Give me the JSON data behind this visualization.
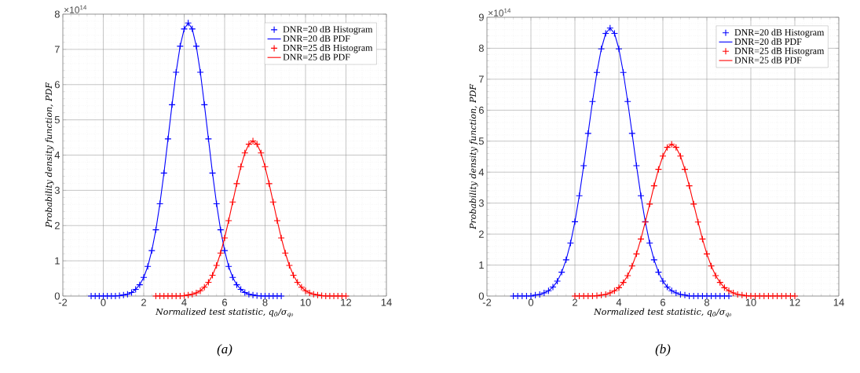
{
  "chart_data": [
    {
      "type": "line",
      "xlabel": "Normalized test statistic, q$_{0}$/σ$_{q₀}$",
      "ylabel": "Probability density function, PDF",
      "xlim": [
        -2,
        14
      ],
      "xticks": [
        -2,
        0,
        2,
        4,
        6,
        8,
        10,
        12,
        14
      ],
      "ylim": [
        0,
        8
      ],
      "yticks": [
        0,
        1,
        2,
        3,
        4,
        5,
        6,
        7,
        8
      ],
      "grid": true,
      "legend": "top right",
      "annotations": [
        "×10$^{14}$",
        "(a)"
      ],
      "series": [
        {
          "name": "DNR=20 dB Histogram",
          "type": "scatter",
          "marker": "cross",
          "color": "#0000ff",
          "x": [
            -0.6,
            -0.4,
            -0.2,
            0,
            0.2,
            0.4,
            0.6,
            0.8,
            1,
            1.2,
            1.4,
            1.6,
            1.8,
            2,
            2.2,
            2.4,
            2.6,
            2.8,
            3,
            3.2,
            3.4,
            3.6,
            3.8,
            4,
            4.2,
            4.4,
            4.6,
            4.8,
            5,
            5.2,
            5.4,
            5.6,
            5.8,
            6,
            6.2,
            6.4,
            6.6,
            6.8,
            7,
            7.2,
            7.4,
            7.6,
            7.8,
            8,
            8.2,
            8.4,
            8.6,
            8.8
          ],
          "values": [
            0,
            0,
            0,
            0,
            0,
            0,
            0,
            0.01,
            0.03,
            0.05,
            0.1,
            0.19,
            0.32,
            0.53,
            0.84,
            1.29,
            1.88,
            2.62,
            3.49,
            4.46,
            5.43,
            6.35,
            7.09,
            7.58,
            7.75,
            7.58,
            7.09,
            6.35,
            5.43,
            4.46,
            3.49,
            2.62,
            1.88,
            1.29,
            0.84,
            0.53,
            0.32,
            0.19,
            0.1,
            0.05,
            0.03,
            0.01,
            0,
            0,
            0,
            0,
            0,
            0
          ]
        },
        {
          "name": "DNR=20 dB PDF",
          "type": "line",
          "color": "#0000ff",
          "x": [
            -0.6,
            -0.4,
            -0.2,
            0,
            0.2,
            0.4,
            0.6,
            0.8,
            1,
            1.2,
            1.4,
            1.6,
            1.8,
            2,
            2.2,
            2.4,
            2.6,
            2.8,
            3,
            3.2,
            3.4,
            3.6,
            3.8,
            4,
            4.2,
            4.4,
            4.6,
            4.8,
            5,
            5.2,
            5.4,
            5.6,
            5.8,
            6,
            6.2,
            6.4,
            6.6,
            6.8,
            7,
            7.2,
            7.4,
            7.6,
            7.8,
            8,
            8.2,
            8.4,
            8.6,
            8.8
          ],
          "values": [
            0,
            0,
            0,
            0,
            0,
            0,
            0,
            0.01,
            0.03,
            0.05,
            0.1,
            0.19,
            0.32,
            0.53,
            0.84,
            1.29,
            1.88,
            2.62,
            3.49,
            4.46,
            5.43,
            6.35,
            7.09,
            7.58,
            7.75,
            7.58,
            7.09,
            6.35,
            5.43,
            4.46,
            3.49,
            2.62,
            1.88,
            1.29,
            0.84,
            0.53,
            0.32,
            0.19,
            0.1,
            0.05,
            0.03,
            0.01,
            0,
            0,
            0,
            0,
            0,
            0
          ]
        },
        {
          "name": "DNR=25 dB Histogram",
          "type": "scatter",
          "marker": "cross",
          "color": "#ff0000",
          "x": [
            2.6,
            2.8,
            3,
            3.2,
            3.4,
            3.6,
            3.8,
            4,
            4.2,
            4.4,
            4.6,
            4.8,
            5,
            5.2,
            5.4,
            5.6,
            5.8,
            6,
            6.2,
            6.4,
            6.6,
            6.8,
            7,
            7.2,
            7.4,
            7.6,
            7.8,
            8,
            8.2,
            8.4,
            8.6,
            8.8,
            9,
            9.2,
            9.4,
            9.6,
            9.8,
            10,
            10.2,
            10.4,
            10.6,
            10.8,
            11,
            11.2,
            11.4,
            11.6,
            11.8,
            12
          ],
          "values": [
            0,
            0,
            0,
            0,
            0,
            0,
            0,
            0.01,
            0.03,
            0.05,
            0.09,
            0.15,
            0.25,
            0.39,
            0.59,
            0.87,
            1.22,
            1.65,
            2.14,
            2.67,
            3.19,
            3.67,
            4.06,
            4.31,
            4.4,
            4.31,
            4.06,
            3.67,
            3.19,
            2.67,
            2.14,
            1.65,
            1.22,
            0.87,
            0.59,
            0.39,
            0.25,
            0.15,
            0.09,
            0.05,
            0.03,
            0.01,
            0,
            0,
            0,
            0,
            0,
            0
          ]
        },
        {
          "name": "DNR=25 dB PDF",
          "type": "line",
          "color": "#ff0000",
          "x": [
            2.6,
            2.8,
            3,
            3.2,
            3.4,
            3.6,
            3.8,
            4,
            4.2,
            4.4,
            4.6,
            4.8,
            5,
            5.2,
            5.4,
            5.6,
            5.8,
            6,
            6.2,
            6.4,
            6.6,
            6.8,
            7,
            7.2,
            7.4,
            7.6,
            7.8,
            8,
            8.2,
            8.4,
            8.6,
            8.8,
            9,
            9.2,
            9.4,
            9.6,
            9.8,
            10,
            10.2,
            10.4,
            10.6,
            10.8,
            11,
            11.2,
            11.4,
            11.6,
            11.8,
            12
          ],
          "values": [
            0,
            0,
            0,
            0,
            0,
            0,
            0,
            0.01,
            0.03,
            0.05,
            0.09,
            0.15,
            0.25,
            0.39,
            0.59,
            0.87,
            1.22,
            1.65,
            2.14,
            2.67,
            3.19,
            3.67,
            4.06,
            4.31,
            4.4,
            4.31,
            4.06,
            3.67,
            3.19,
            2.67,
            2.14,
            1.65,
            1.22,
            0.87,
            0.59,
            0.39,
            0.25,
            0.15,
            0.09,
            0.05,
            0.03,
            0.01,
            0,
            0,
            0,
            0,
            0,
            0
          ]
        }
      ]
    },
    {
      "type": "line",
      "xlabel": "Normalized test statistic, q$_{0}$/σ$_{q₀}$",
      "ylabel": "Probability density function, PDF",
      "xlim": [
        -2,
        14
      ],
      "xticks": [
        -2,
        0,
        2,
        4,
        6,
        8,
        10,
        12,
        14
      ],
      "ylim": [
        0,
        9
      ],
      "yticks": [
        0,
        1,
        2,
        3,
        4,
        5,
        6,
        7,
        8,
        9
      ],
      "grid": true,
      "legend": "top right",
      "annotations": [
        "×10$^{14}$",
        "(b)"
      ],
      "series": [
        {
          "name": "DNR=20 dB Histogram",
          "type": "scatter",
          "marker": "cross",
          "color": "#0000ff",
          "x": [
            -0.8,
            -0.6,
            -0.4,
            -0.2,
            0,
            0.2,
            0.4,
            0.6,
            0.8,
            1,
            1.2,
            1.4,
            1.6,
            1.8,
            2,
            2.2,
            2.4,
            2.6,
            2.8,
            3,
            3.2,
            3.4,
            3.6,
            3.8,
            4,
            4.2,
            4.4,
            4.6,
            4.8,
            5,
            5.2,
            5.4,
            5.6,
            5.8,
            6,
            6.2,
            6.4,
            6.6,
            6.8,
            7,
            7.2,
            7.4,
            7.6,
            7.8,
            8,
            8.2,
            8.4,
            8.6,
            8.8,
            9
          ],
          "values": [
            0,
            0,
            0,
            0,
            0,
            0.03,
            0.05,
            0.1,
            0.17,
            0.29,
            0.48,
            0.77,
            1.17,
            1.71,
            2.4,
            3.24,
            4.21,
            5.25,
            6.28,
            7.22,
            7.98,
            8.48,
            8.65,
            8.48,
            7.98,
            7.22,
            6.28,
            5.25,
            4.21,
            3.24,
            2.4,
            1.71,
            1.17,
            0.77,
            0.48,
            0.29,
            0.17,
            0.1,
            0.05,
            0.03,
            0,
            0,
            0,
            0,
            0,
            0,
            0,
            0,
            0,
            0
          ]
        },
        {
          "name": "DNR=20 dB PDF",
          "type": "line",
          "color": "#0000ff",
          "x": [
            -0.8,
            -0.6,
            -0.4,
            -0.2,
            0,
            0.2,
            0.4,
            0.6,
            0.8,
            1,
            1.2,
            1.4,
            1.6,
            1.8,
            2,
            2.2,
            2.4,
            2.6,
            2.8,
            3,
            3.2,
            3.4,
            3.6,
            3.8,
            4,
            4.2,
            4.4,
            4.6,
            4.8,
            5,
            5.2,
            5.4,
            5.6,
            5.8,
            6,
            6.2,
            6.4,
            6.6,
            6.8,
            7,
            7.2,
            7.4,
            7.6,
            7.8,
            8,
            8.2,
            8.4,
            8.6,
            8.8,
            9
          ],
          "values": [
            0,
            0,
            0,
            0,
            0,
            0.03,
            0.05,
            0.1,
            0.17,
            0.29,
            0.48,
            0.77,
            1.17,
            1.71,
            2.4,
            3.24,
            4.21,
            5.25,
            6.28,
            7.22,
            7.98,
            8.48,
            8.65,
            8.48,
            7.98,
            7.22,
            6.28,
            5.25,
            4.21,
            3.24,
            2.4,
            1.71,
            1.17,
            0.77,
            0.48,
            0.29,
            0.17,
            0.1,
            0.05,
            0.03,
            0,
            0,
            0,
            0,
            0,
            0,
            0,
            0,
            0,
            0
          ]
        },
        {
          "name": "DNR=25 dB Histogram",
          "type": "scatter",
          "marker": "cross",
          "color": "#ff0000",
          "x": [
            2,
            2.2,
            2.4,
            2.6,
            2.8,
            3,
            3.2,
            3.4,
            3.6,
            3.8,
            4,
            4.2,
            4.4,
            4.6,
            4.8,
            5,
            5.2,
            5.4,
            5.6,
            5.8,
            6,
            6.2,
            6.4,
            6.6,
            6.8,
            7,
            7.2,
            7.4,
            7.6,
            7.8,
            8,
            8.2,
            8.4,
            8.6,
            8.8,
            9,
            9.2,
            9.4,
            9.6,
            9.8,
            10,
            10.2,
            10.4,
            10.6,
            10.8,
            11,
            11.2,
            11.4,
            11.6,
            11.8,
            12
          ],
          "values": [
            0,
            0,
            0,
            0,
            0,
            0.01,
            0.03,
            0.05,
            0.1,
            0.17,
            0.27,
            0.44,
            0.66,
            0.97,
            1.36,
            1.84,
            2.39,
            2.97,
            3.56,
            4.09,
            4.52,
            4.8,
            4.9,
            4.8,
            4.52,
            4.09,
            3.56,
            2.97,
            2.39,
            1.84,
            1.36,
            0.97,
            0.66,
            0.44,
            0.27,
            0.17,
            0.1,
            0.05,
            0.03,
            0.01,
            0,
            0,
            0,
            0,
            0,
            0,
            0,
            0,
            0,
            0,
            0
          ]
        },
        {
          "name": "DNR=25 dB PDF",
          "type": "line",
          "color": "#ff0000",
          "x": [
            2,
            2.2,
            2.4,
            2.6,
            2.8,
            3,
            3.2,
            3.4,
            3.6,
            3.8,
            4,
            4.2,
            4.4,
            4.6,
            4.8,
            5,
            5.2,
            5.4,
            5.6,
            5.8,
            6,
            6.2,
            6.4,
            6.6,
            6.8,
            7,
            7.2,
            7.4,
            7.6,
            7.8,
            8,
            8.2,
            8.4,
            8.6,
            8.8,
            9,
            9.2,
            9.4,
            9.6,
            9.8,
            10,
            10.2,
            10.4,
            10.6,
            10.8,
            11,
            11.2,
            11.4,
            11.6,
            11.8,
            12
          ],
          "values": [
            0,
            0,
            0,
            0,
            0,
            0.01,
            0.03,
            0.05,
            0.1,
            0.17,
            0.27,
            0.44,
            0.66,
            0.97,
            1.36,
            1.84,
            2.39,
            2.97,
            3.56,
            4.09,
            4.52,
            4.8,
            4.9,
            4.8,
            4.52,
            4.09,
            3.56,
            2.97,
            2.39,
            1.84,
            1.36,
            0.97,
            0.66,
            0.44,
            0.27,
            0.17,
            0.1,
            0.05,
            0.03,
            0.01,
            0,
            0,
            0,
            0,
            0,
            0,
            0,
            0,
            0,
            0,
            0
          ]
        }
      ]
    }
  ]
}
